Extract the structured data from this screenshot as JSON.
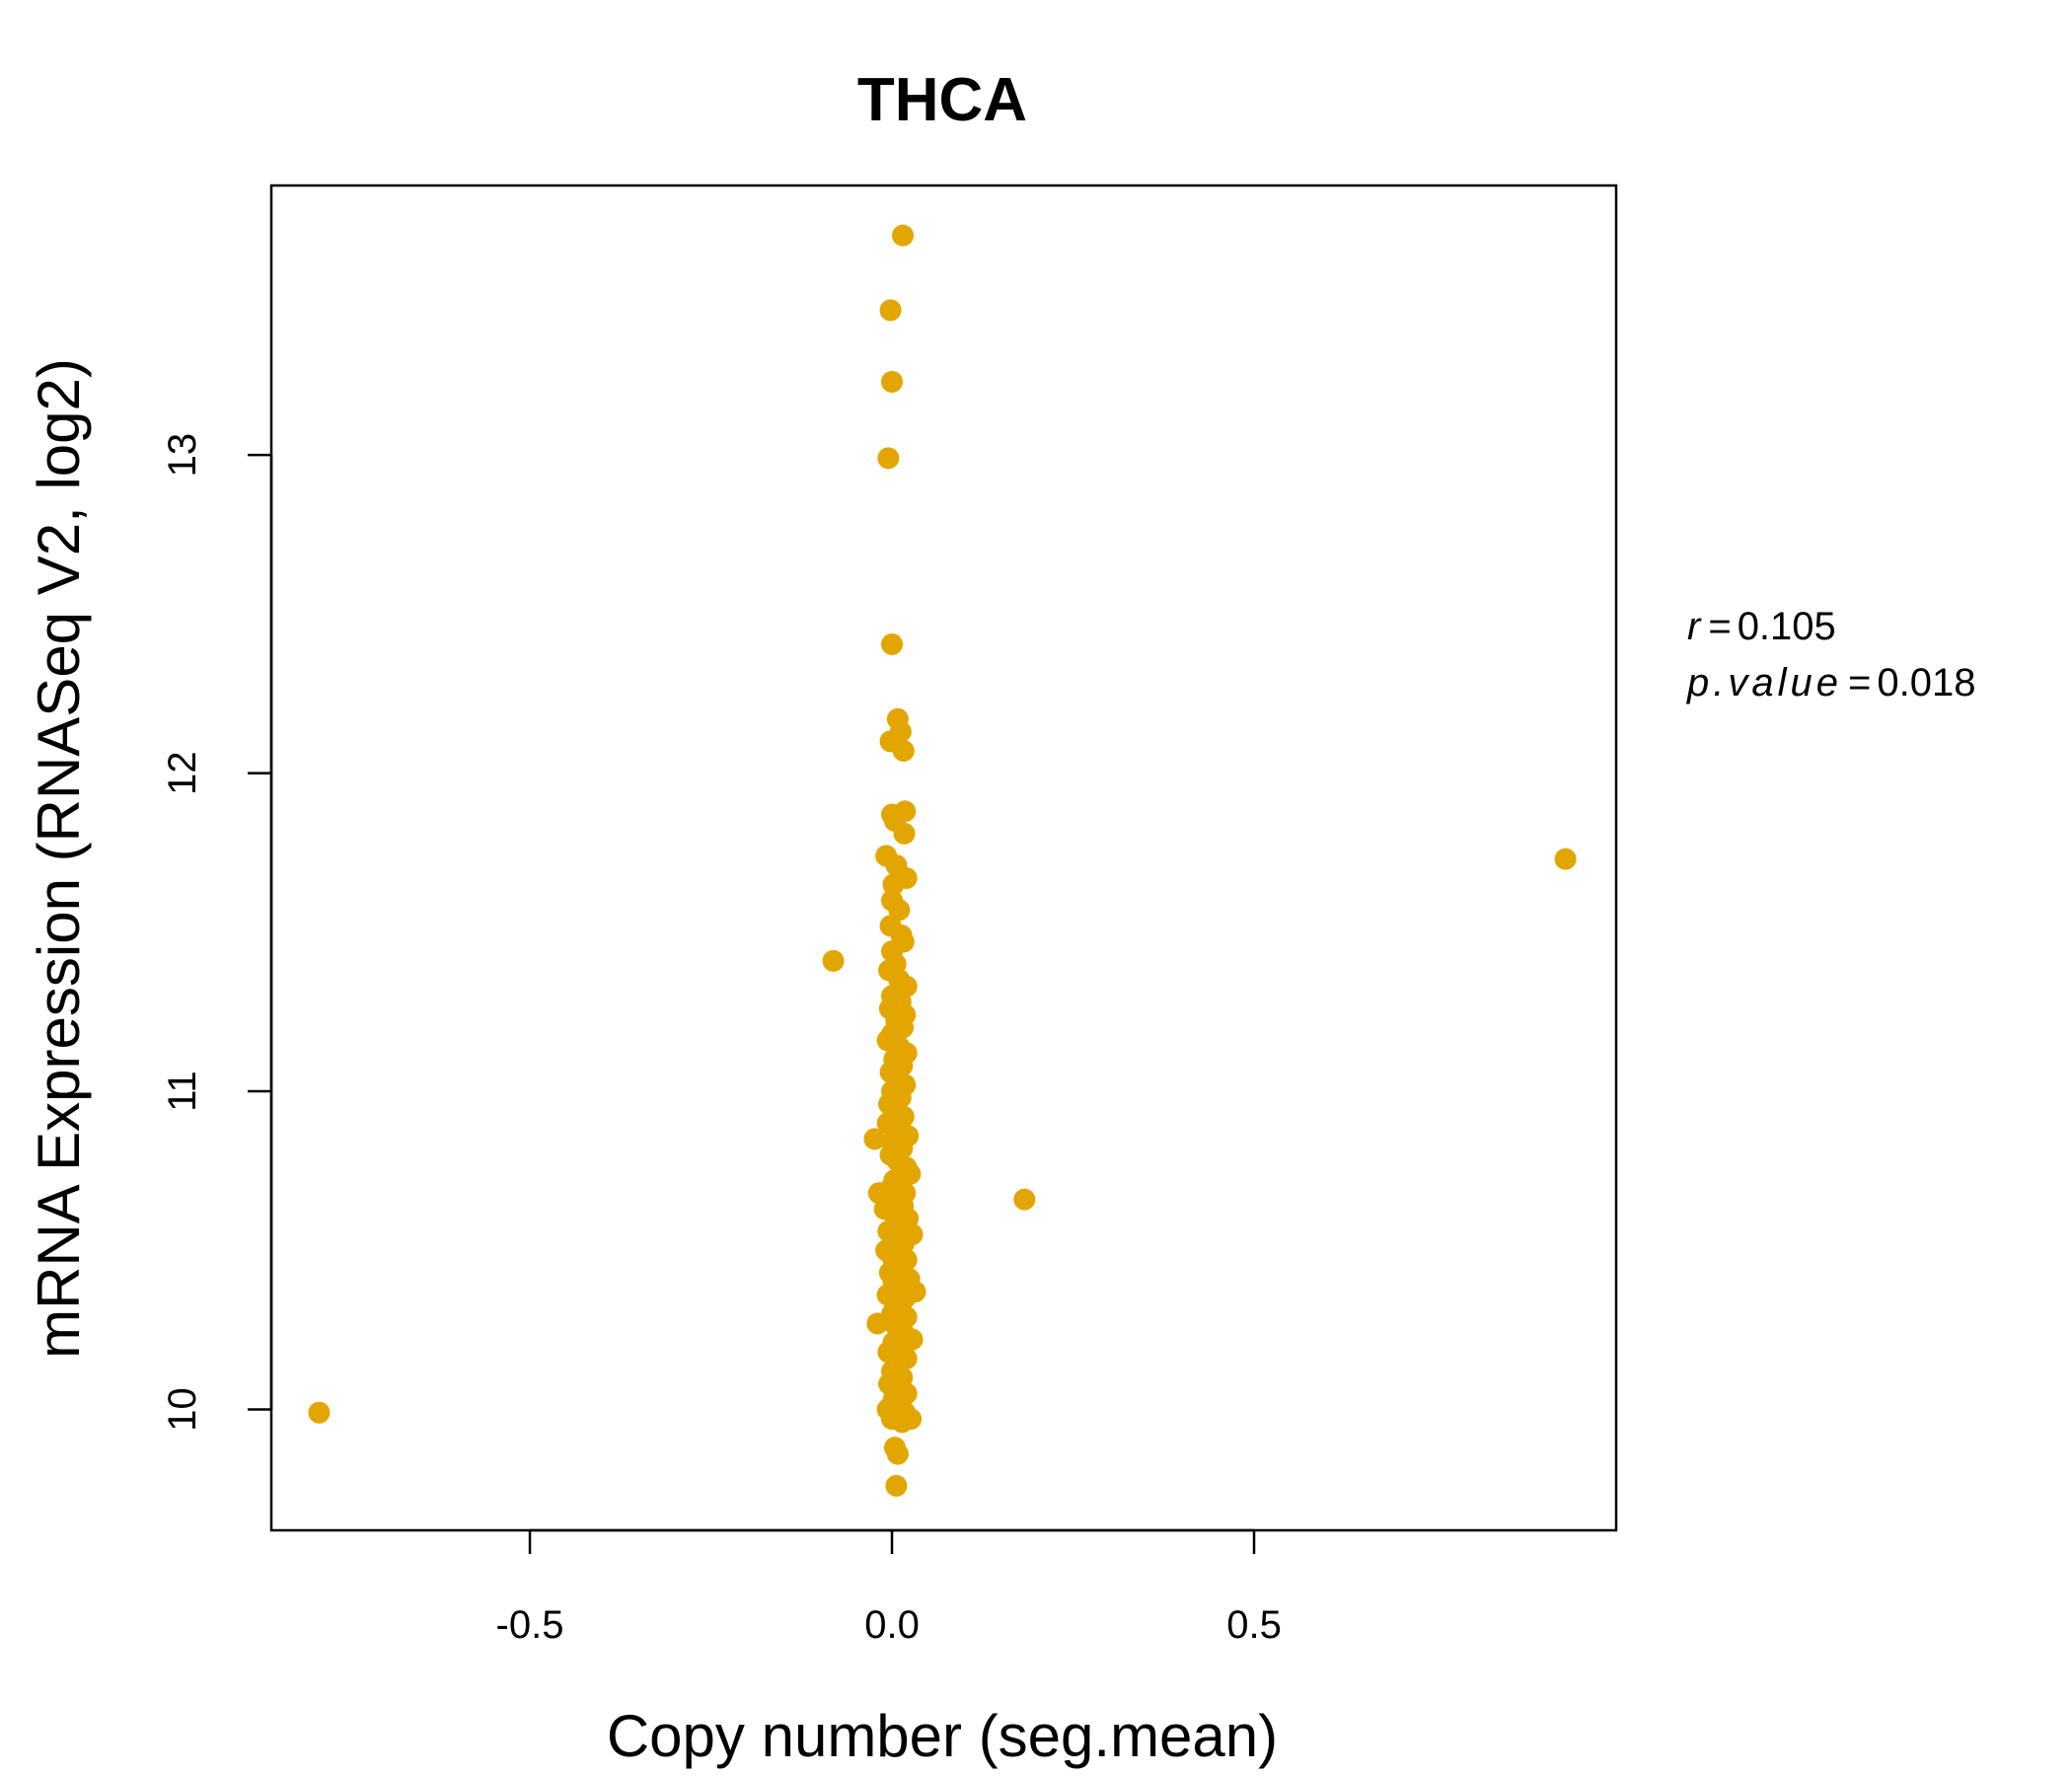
{
  "chart_data": {
    "type": "scatter",
    "title": "THCA",
    "title_color": "#E3A600",
    "point_color": "#E3A600",
    "xlabel": "Copy number (seg.mean)",
    "ylabel": "mRNA Expression (RNASeq V2, log2)",
    "xlim": [
      -0.857,
      1.0
    ],
    "ylim": [
      9.62,
      13.847
    ],
    "xticks": [
      -0.5,
      0.0,
      0.5
    ],
    "xtick_labels": [
      "-0.5",
      "0.0",
      "0.5"
    ],
    "yticks": [
      10,
      11,
      12,
      13
    ],
    "ytick_labels": [
      "10",
      "11",
      "12",
      "13"
    ],
    "grid": false,
    "annotations": {
      "r_label": "r",
      "r_value": "0.105",
      "p_label": "p.value",
      "p_value": "0.018"
    },
    "points": [
      [
        -0.791,
        9.99
      ],
      [
        0.93,
        11.73
      ],
      [
        0.183,
        10.66
      ],
      [
        -0.081,
        11.41
      ],
      [
        -0.024,
        10.85
      ],
      [
        0.015,
        13.69
      ],
      [
        -0.002,
        13.455
      ],
      [
        0.0,
        13.23
      ],
      [
        -0.005,
        12.99
      ],
      [
        0.0,
        12.405
      ],
      [
        0.008,
        12.17
      ],
      [
        0.012,
        12.13
      ],
      [
        -0.002,
        12.1
      ],
      [
        0.016,
        12.07
      ],
      [
        0.0,
        11.87
      ],
      [
        0.018,
        11.88
      ],
      [
        0.004,
        11.85
      ],
      [
        0.017,
        11.81
      ],
      [
        -0.008,
        11.74
      ],
      [
        0.006,
        11.71
      ],
      [
        0.02,
        11.67
      ],
      [
        0.002,
        11.65
      ],
      [
        0.0,
        11.6
      ],
      [
        0.01,
        11.57
      ],
      [
        -0.002,
        11.52
      ],
      [
        0.013,
        11.49
      ],
      [
        0.016,
        11.47
      ],
      [
        0.0,
        11.44
      ],
      [
        0.005,
        11.4
      ],
      [
        -0.004,
        11.38
      ],
      [
        0.01,
        11.35
      ],
      [
        0.02,
        11.33
      ],
      [
        0.0,
        11.3
      ],
      [
        0.012,
        11.28
      ],
      [
        -0.003,
        11.26
      ],
      [
        0.018,
        11.24
      ],
      [
        0.006,
        11.22
      ],
      [
        0.015,
        11.2
      ],
      [
        0.0,
        11.18
      ],
      [
        -0.006,
        11.16
      ],
      [
        0.01,
        11.14
      ],
      [
        0.02,
        11.12
      ],
      [
        0.003,
        11.1
      ],
      [
        0.014,
        11.08
      ],
      [
        -0.002,
        11.06
      ],
      [
        0.008,
        11.04
      ],
      [
        0.018,
        11.02
      ],
      [
        0.0,
        11.0
      ],
      [
        0.012,
        10.98
      ],
      [
        -0.004,
        10.96
      ],
      [
        0.005,
        10.94
      ],
      [
        0.016,
        10.92
      ],
      [
        -0.006,
        10.9
      ],
      [
        0.01,
        10.88
      ],
      [
        0.022,
        10.86
      ],
      [
        0.0,
        10.84
      ],
      [
        0.014,
        10.82
      ],
      [
        -0.002,
        10.8
      ],
      [
        0.008,
        10.78
      ],
      [
        0.02,
        10.76
      ],
      [
        0.025,
        10.74
      ],
      [
        0.003,
        10.72
      ],
      [
        0.012,
        10.7
      ],
      [
        -0.004,
        10.69
      ],
      [
        0.018,
        10.68
      ],
      [
        -0.018,
        10.68
      ],
      [
        0.006,
        10.66
      ],
      [
        0.015,
        10.64
      ],
      [
        -0.01,
        10.63
      ],
      [
        0.0,
        10.62
      ],
      [
        0.022,
        10.6
      ],
      [
        0.01,
        10.58
      ],
      [
        -0.005,
        10.56
      ],
      [
        0.028,
        10.55
      ],
      [
        0.004,
        10.54
      ],
      [
        0.016,
        10.52
      ],
      [
        -0.008,
        10.5
      ],
      [
        0.01,
        10.49
      ],
      [
        0.0,
        10.48
      ],
      [
        0.02,
        10.47
      ],
      [
        0.006,
        10.45
      ],
      [
        -0.003,
        10.43
      ],
      [
        0.014,
        10.42
      ],
      [
        0.024,
        10.41
      ],
      [
        0.002,
        10.4
      ],
      [
        0.01,
        10.38
      ],
      [
        0.032,
        10.37
      ],
      [
        -0.006,
        10.36
      ],
      [
        0.018,
        10.35
      ],
      [
        0.004,
        10.33
      ],
      [
        0.012,
        10.32
      ],
      [
        0.0,
        10.3
      ],
      [
        0.02,
        10.29
      ],
      [
        -0.004,
        10.28
      ],
      [
        -0.02,
        10.27
      ],
      [
        0.008,
        10.25
      ],
      [
        0.016,
        10.24
      ],
      [
        0.028,
        10.22
      ],
      [
        0.002,
        10.21
      ],
      [
        0.012,
        10.2
      ],
      [
        -0.005,
        10.18
      ],
      [
        0.02,
        10.16
      ],
      [
        0.006,
        10.14
      ],
      [
        0.0,
        10.12
      ],
      [
        0.014,
        10.1
      ],
      [
        -0.004,
        10.08
      ],
      [
        0.01,
        10.06
      ],
      [
        0.02,
        10.05
      ],
      [
        0.002,
        10.03
      ],
      [
        0.012,
        10.02
      ],
      [
        -0.006,
        10.0
      ],
      [
        0.018,
        9.99
      ],
      [
        0.006,
        9.98
      ],
      [
        0.026,
        9.97
      ],
      [
        0.0,
        9.97
      ],
      [
        0.014,
        9.96
      ],
      [
        0.004,
        9.88
      ],
      [
        0.008,
        9.86
      ],
      [
        0.006,
        9.76
      ]
    ]
  }
}
